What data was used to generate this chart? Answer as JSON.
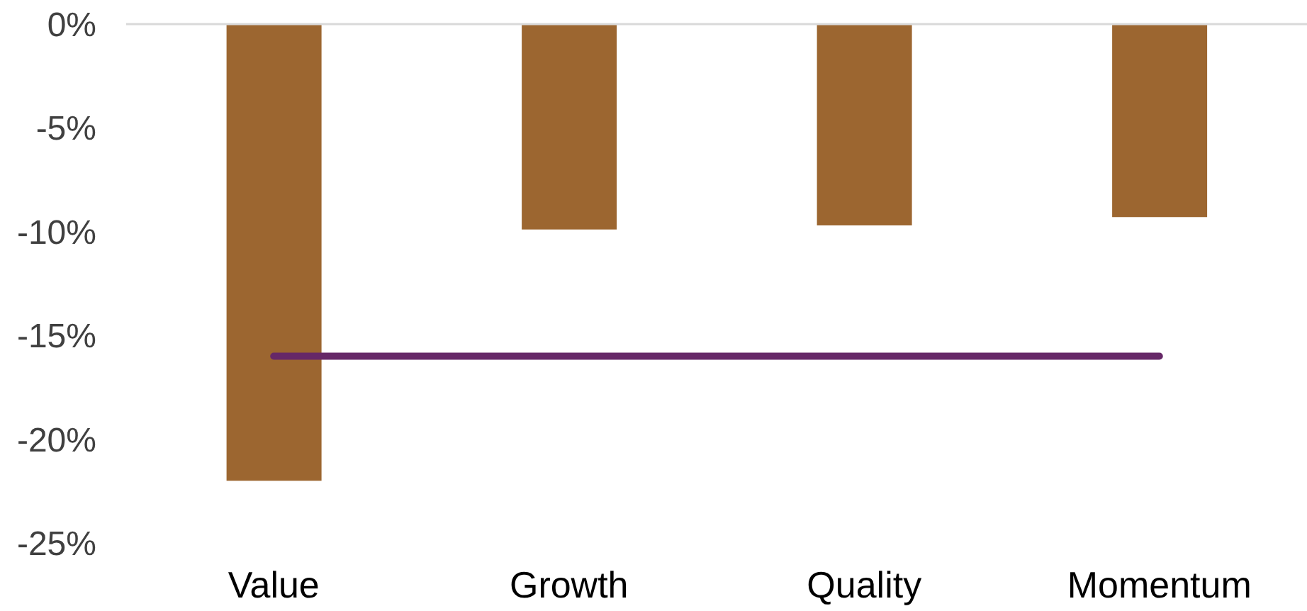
{
  "chart_data": {
    "type": "bar",
    "categories": [
      "Value",
      "Growth",
      "Quality",
      "Momentum"
    ],
    "series": [
      {
        "color": "#9c6630",
        "values": [
          -22,
          -9.9,
          -9.7,
          -9.3
        ]
      },
      {
        "type": "line",
        "color": "#662867",
        "values": [
          -16,
          -16,
          -16,
          -16
        ]
      }
    ],
    "ylim": [
      -25,
      0
    ],
    "yticks": [
      {
        "value": -25,
        "label": "-25%"
      },
      {
        "value": -20,
        "label": "-20%"
      },
      {
        "value": -15,
        "label": "-15%"
      },
      {
        "value": -10,
        "label": "-10%"
      },
      {
        "value": -5,
        "label": "-5%"
      },
      {
        "value": 0,
        "label": "0%"
      }
    ]
  }
}
